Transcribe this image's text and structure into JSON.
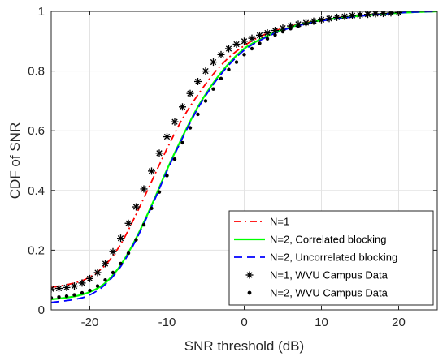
{
  "chart_data": {
    "type": "line",
    "xlabel": "SNR threshold (dB)",
    "ylabel": "CDF of SNR",
    "xlim": [
      -25,
      25
    ],
    "ylim": [
      0,
      1
    ],
    "xticks": [
      -20,
      -10,
      0,
      10,
      20
    ],
    "yticks": [
      0,
      0.2,
      0.4,
      0.6,
      0.8,
      1
    ],
    "xtick_labels": [
      "-20",
      "-10",
      "0",
      "10",
      "20"
    ],
    "ytick_labels": [
      "0",
      "0.2",
      "0.4",
      "0.6",
      "0.8",
      "1"
    ],
    "grid": true,
    "legend_position": "bottom-right",
    "series": [
      {
        "name": "N=1",
        "style": "dash-dot",
        "color": "#ff0000",
        "x": [
          -25,
          -22,
          -20,
          -18,
          -16,
          -14,
          -12,
          -10,
          -8,
          -6,
          -4,
          -2,
          0,
          2,
          4,
          6,
          8,
          10,
          15,
          20,
          25
        ],
        "y": [
          0.075,
          0.09,
          0.11,
          0.15,
          0.22,
          0.32,
          0.43,
          0.54,
          0.64,
          0.72,
          0.79,
          0.845,
          0.885,
          0.915,
          0.935,
          0.95,
          0.962,
          0.972,
          0.987,
          0.995,
          1.0
        ]
      },
      {
        "name": "N=2, Correlated blocking",
        "style": "solid",
        "color": "#00ff00",
        "x": [
          -25,
          -22,
          -20,
          -18,
          -16,
          -14,
          -12,
          -10,
          -8,
          -6,
          -4,
          -2,
          0,
          2,
          4,
          6,
          8,
          10,
          15,
          20,
          25
        ],
        "y": [
          0.035,
          0.045,
          0.06,
          0.09,
          0.15,
          0.24,
          0.35,
          0.47,
          0.58,
          0.68,
          0.76,
          0.825,
          0.875,
          0.905,
          0.93,
          0.947,
          0.96,
          0.97,
          0.985,
          0.995,
          1.0
        ]
      },
      {
        "name": "N=2, Uncorrelated blocking",
        "style": "dashed",
        "color": "#0000ff",
        "x": [
          -25,
          -22,
          -20,
          -18,
          -16,
          -14,
          -12,
          -10,
          -8,
          -6,
          -4,
          -2,
          0,
          2,
          4,
          6,
          8,
          10,
          15,
          20,
          25
        ],
        "y": [
          0.025,
          0.035,
          0.05,
          0.085,
          0.145,
          0.235,
          0.345,
          0.465,
          0.575,
          0.675,
          0.755,
          0.82,
          0.87,
          0.902,
          0.927,
          0.945,
          0.958,
          0.968,
          0.984,
          0.995,
          1.0
        ]
      },
      {
        "name": "N=1, WVU Campus Data",
        "style": "asterisk",
        "color": "#000000",
        "x": [
          -25,
          -24,
          -23,
          -22,
          -21,
          -20,
          -19,
          -18,
          -17,
          -16,
          -15,
          -14,
          -13,
          -12,
          -11,
          -10,
          -9,
          -8,
          -7,
          -6,
          -5,
          -4,
          -3,
          -2,
          -1,
          0,
          1,
          2,
          3,
          4,
          5,
          6,
          7,
          8,
          9,
          10,
          11,
          12,
          13,
          14,
          15,
          16,
          17,
          18,
          19,
          20
        ],
        "y": [
          0.07,
          0.072,
          0.075,
          0.08,
          0.09,
          0.105,
          0.125,
          0.155,
          0.195,
          0.24,
          0.29,
          0.345,
          0.405,
          0.465,
          0.525,
          0.58,
          0.63,
          0.68,
          0.725,
          0.765,
          0.8,
          0.83,
          0.855,
          0.875,
          0.89,
          0.9,
          0.91,
          0.92,
          0.928,
          0.936,
          0.944,
          0.951,
          0.957,
          0.962,
          0.967,
          0.972,
          0.976,
          0.98,
          0.983,
          0.986,
          0.988,
          0.99,
          0.992,
          0.993,
          0.995,
          0.996
        ]
      },
      {
        "name": "N=2, WVU Campus Data",
        "style": "dot",
        "color": "#000000",
        "x": [
          -25,
          -24,
          -23,
          -22,
          -21,
          -20,
          -19,
          -18,
          -17,
          -16,
          -15,
          -14,
          -13,
          -12,
          -11,
          -10,
          -9,
          -8,
          -7,
          -6,
          -5,
          -4,
          -3,
          -2,
          -1,
          0,
          1,
          2,
          3,
          4,
          5,
          6,
          7,
          8,
          9,
          10,
          11,
          12,
          13,
          14,
          15,
          16,
          17,
          18,
          19,
          20
        ],
        "y": [
          0.04,
          0.043,
          0.046,
          0.05,
          0.057,
          0.065,
          0.08,
          0.1,
          0.125,
          0.155,
          0.19,
          0.235,
          0.285,
          0.34,
          0.395,
          0.45,
          0.505,
          0.56,
          0.61,
          0.655,
          0.7,
          0.74,
          0.775,
          0.805,
          0.83,
          0.855,
          0.875,
          0.893,
          0.908,
          0.921,
          0.932,
          0.942,
          0.951,
          0.958,
          0.965,
          0.971,
          0.976,
          0.98,
          0.984,
          0.987,
          0.99,
          0.992,
          0.994,
          0.996,
          0.997,
          0.998
        ]
      }
    ]
  }
}
